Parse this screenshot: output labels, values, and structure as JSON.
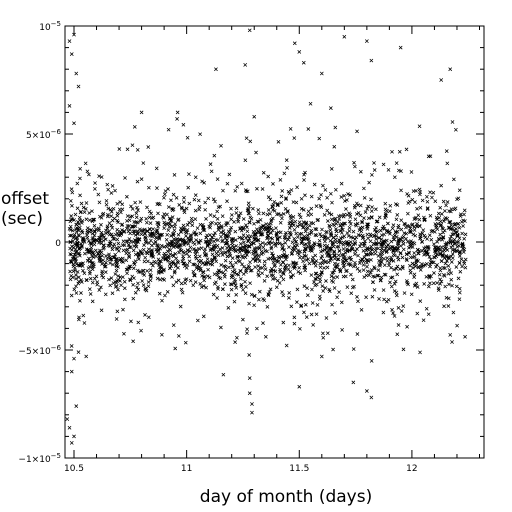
{
  "chart_data": {
    "type": "scatter",
    "xlabel": "day of month (days)",
    "ylabel_line1": "offset",
    "ylabel_line2": "(sec)",
    "xlim": [
      10.46,
      12.32
    ],
    "ylim": [
      -1e-05,
      1e-05
    ],
    "x_ticks": [
      {
        "value": 10.5,
        "label": "10.5"
      },
      {
        "value": 11,
        "label": "11"
      },
      {
        "value": 11.5,
        "label": "11.5"
      },
      {
        "value": 12,
        "label": "12"
      }
    ],
    "y_ticks": [
      {
        "value": -1e-05,
        "base": "−1×10",
        "exp": "−5"
      },
      {
        "value": -5e-06,
        "base": "−5×10",
        "exp": "−6"
      },
      {
        "value": 0,
        "base": "0",
        "exp": ""
      },
      {
        "value": 5e-06,
        "base": "5×10",
        "exp": "−6"
      },
      {
        "value": 1e-05,
        "base": "10",
        "exp": "−5"
      }
    ],
    "marker": "x",
    "marker_color": "#000000",
    "series": [
      {
        "x_range": [
          10.48,
          12.24
        ],
        "n_points": 2600,
        "core_std": 1e-06,
        "mid_std": 2e-06,
        "y_center": -2e-07,
        "y_extent": [
          -9.5e-06,
          9.8e-06
        ],
        "points": [
          [
            10.48,
            9.3e-06
          ],
          [
            10.49,
            8.7e-06
          ],
          [
            10.5,
            9.6e-06
          ],
          [
            10.51,
            7.8e-06
          ],
          [
            10.52,
            7.2e-06
          ],
          [
            10.47,
            -8.2e-06
          ],
          [
            10.48,
            -8.6e-06
          ],
          [
            10.49,
            -9.3e-06
          ],
          [
            10.5,
            -9e-06
          ],
          [
            10.51,
            -7.6e-06
          ],
          [
            10.49,
            -6e-06
          ],
          [
            10.5,
            -5.4e-06
          ],
          [
            10.52,
            -5.1e-06
          ],
          [
            10.48,
            6.3e-06
          ],
          [
            10.5,
            5.5e-06
          ],
          [
            10.8,
            6e-06
          ],
          [
            10.96,
            6e-06
          ],
          [
            11.13,
            8e-06
          ],
          [
            11.28,
            9.8e-06
          ],
          [
            11.26,
            8.2e-06
          ],
          [
            11.48,
            9.2e-06
          ],
          [
            11.5,
            8.8e-06
          ],
          [
            11.52,
            8.3e-06
          ],
          [
            11.6,
            7.8e-06
          ],
          [
            11.7,
            9.5e-06
          ],
          [
            11.8,
            9.3e-06
          ],
          [
            11.82,
            8.4e-06
          ],
          [
            11.95,
            9e-06
          ],
          [
            12.17,
            8e-06
          ],
          [
            12.13,
            7.5e-06
          ],
          [
            11.28,
            -6.3e-06
          ],
          [
            11.28,
            -7e-06
          ],
          [
            11.29,
            -7.5e-06
          ],
          [
            11.29,
            -7.9e-06
          ],
          [
            11.5,
            -6.7e-06
          ],
          [
            11.6,
            -5.3e-06
          ],
          [
            11.74,
            -6.5e-06
          ],
          [
            11.8,
            -6.9e-06
          ],
          [
            11.82,
            -7.2e-06
          ],
          [
            12.17,
            -4.3e-06
          ],
          [
            11.55,
            6.4e-06
          ],
          [
            11.64,
            6.2e-06
          ],
          [
            11.66,
            5.3e-06
          ],
          [
            10.92,
            5.2e-06
          ],
          [
            11.3,
            5.8e-06
          ]
        ]
      }
    ]
  }
}
